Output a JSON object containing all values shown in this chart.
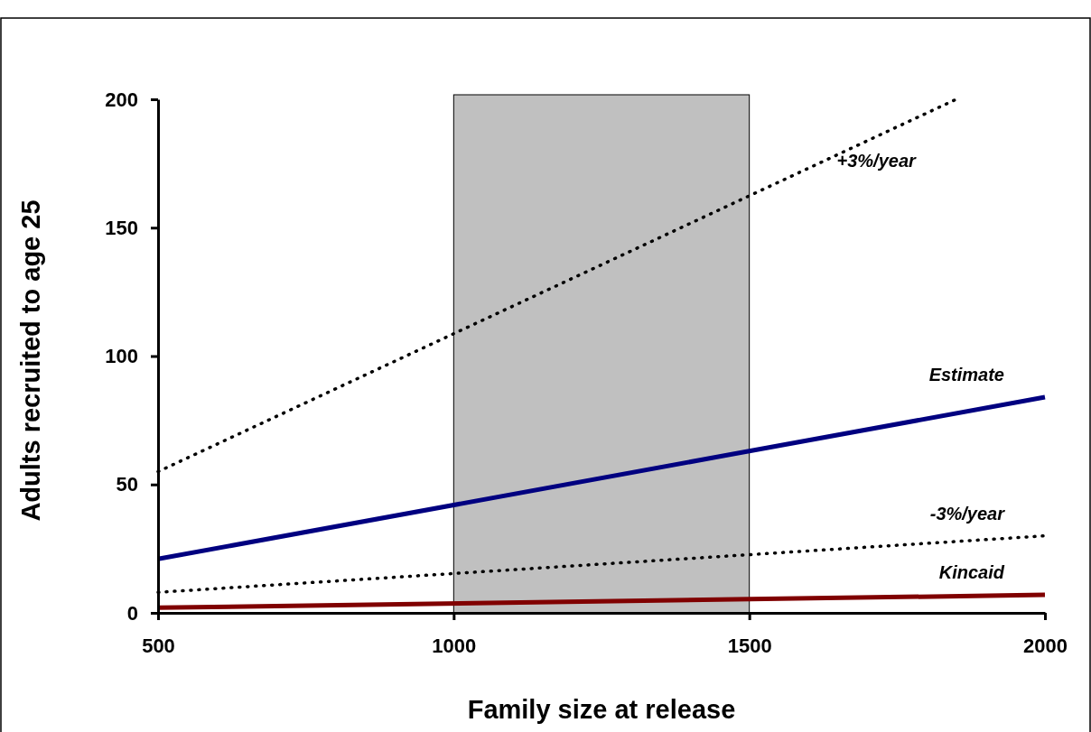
{
  "chart_data": {
    "type": "line",
    "xlabel": "Family size at release",
    "ylabel": "Adults recruited to age 25",
    "xlim": [
      500,
      2000
    ],
    "xticks": [
      500,
      1000,
      1500,
      2000
    ],
    "ylim": [
      0,
      200
    ],
    "yticks": [
      0,
      50,
      100,
      150,
      200
    ],
    "grid": false,
    "legend": false,
    "marker": "none",
    "bands": [
      {
        "axis": "x",
        "from": 1000,
        "to": 1500,
        "color": "#c0c0c0"
      }
    ],
    "series": [
      {
        "name": "+3%/year",
        "color": "#000000",
        "line_style": "dotted",
        "x": [
          500,
          1850
        ],
        "values": [
          55,
          200
        ]
      },
      {
        "name": "Estimate",
        "color": "#000080",
        "line_style": "solid",
        "x": [
          500,
          2000
        ],
        "values": [
          21,
          84
        ]
      },
      {
        "name": "-3%/year",
        "color": "#000000",
        "line_style": "dotted",
        "x": [
          500,
          2000
        ],
        "values": [
          8,
          30
        ]
      },
      {
        "name": "Kincaid",
        "color": "#800000",
        "line_style": "solid",
        "x": [
          500,
          2000
        ],
        "values": [
          2,
          7
        ]
      }
    ]
  }
}
